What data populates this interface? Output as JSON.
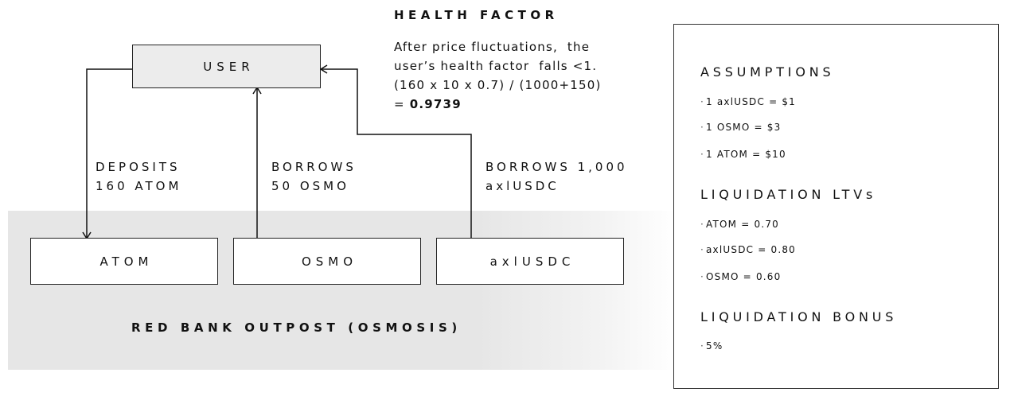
{
  "health_factor": {
    "title": "HEALTH FACTOR",
    "lines": [
      "After price fluctuations,  the",
      "user’s health factor  falls <1.",
      "(160 x 10 x 0.7) / (1000+150)"
    ],
    "result_prefix": "= ",
    "result_value": "0.9739"
  },
  "diagram": {
    "user_label": "USER",
    "assets": [
      "ATOM",
      "OSMO",
      "axlUSDC"
    ],
    "edges": [
      {
        "line1": "DEPOSITS",
        "line2": "160 ATOM"
      },
      {
        "line1": "BORROWS",
        "line2": "50 OSMO"
      },
      {
        "line1": "BORROWS 1,000",
        "line2": "axlUSDC"
      }
    ],
    "bank_label": "RED BANK OUTPOST (OSMOSIS)"
  },
  "panel": {
    "sections": [
      {
        "title": "ASSUMPTIONS",
        "items": [
          "1 axlUSDC = $1",
          "1 OSMO = $3",
          "1 ATOM = $10"
        ]
      },
      {
        "title": "LIQUIDATION LTVs",
        "items": [
          "ATOM = 0.70",
          "axlUSDC = 0.80",
          "OSMO = 0.60"
        ]
      },
      {
        "title": "LIQUIDATION BONUS",
        "items": [
          "5%"
        ]
      }
    ]
  }
}
